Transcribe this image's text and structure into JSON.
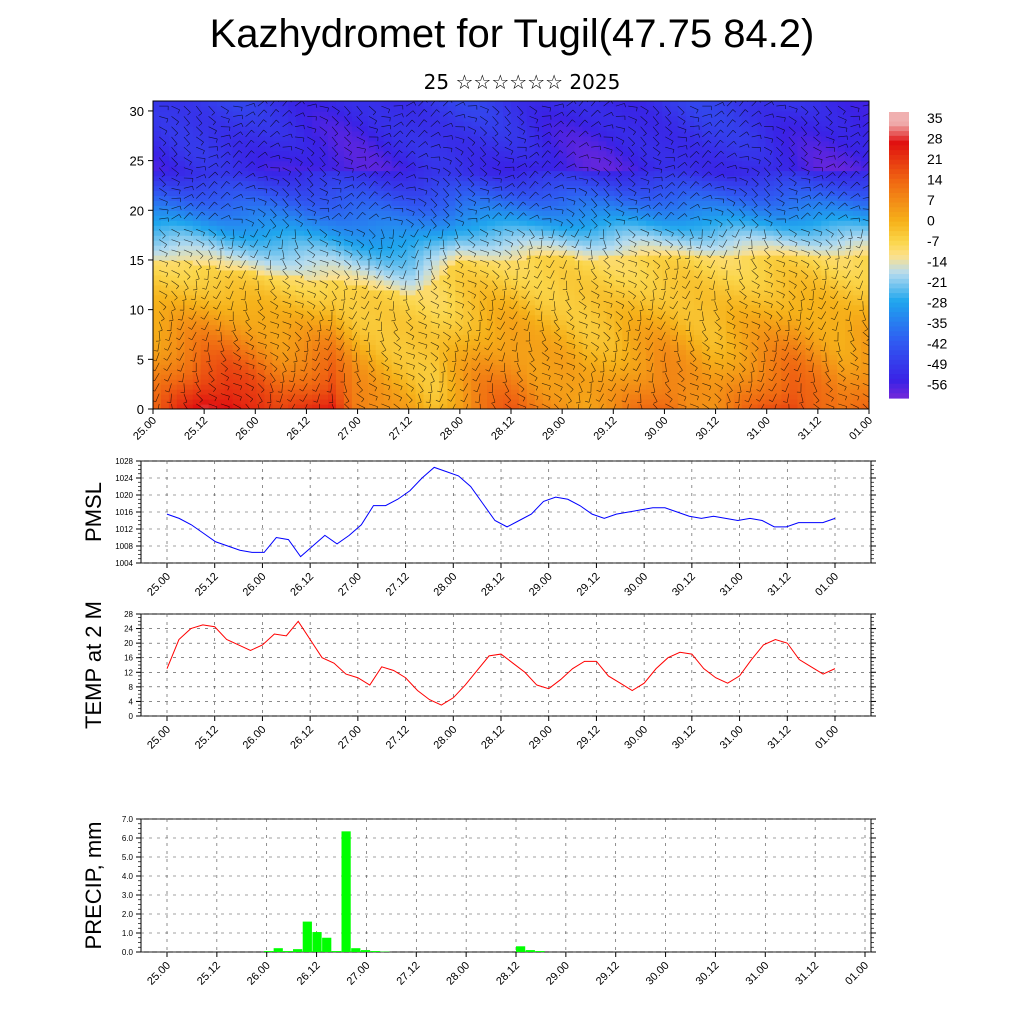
{
  "header": {
    "title": "Kazhydromet for Tugil(47.75 84.2)",
    "subtitle": "25 ☆☆☆☆☆☆ 2025"
  },
  "chart_data": [
    {
      "type": "heatmap",
      "title": "Kazhydromet for Tugil(47.75 84.2)",
      "xlabel": "",
      "ylabel": "",
      "x_ticks": [
        "25.00",
        "25.12",
        "26.00",
        "26.12",
        "27.00",
        "27.12",
        "28.00",
        "28.12",
        "29.00",
        "29.12",
        "30.00",
        "30.12",
        "31.00",
        "31.12",
        "01.00"
      ],
      "y_ticks": [
        0,
        5,
        10,
        15,
        20,
        25,
        30
      ],
      "ylim": [
        0,
        31
      ],
      "colorbar": {
        "labels": [
          "35",
          "28",
          "21",
          "14",
          "7",
          "0",
          "-7",
          "-14",
          "-21",
          "-28",
          "-35",
          "-42",
          "-49",
          "-56"
        ],
        "range": [
          -63,
          38
        ],
        "stops": [
          {
            "value": -63,
            "color": "#7a28d8"
          },
          {
            "value": -56,
            "color": "#3a22e6"
          },
          {
            "value": -42,
            "color": "#2f5cf2"
          },
          {
            "value": -28,
            "color": "#1fa6ee"
          },
          {
            "value": -18,
            "color": "#b7dcef"
          },
          {
            "value": -12,
            "color": "#fde08a"
          },
          {
            "value": -7,
            "color": "#fbd64a"
          },
          {
            "value": 0,
            "color": "#f6b21a"
          },
          {
            "value": 14,
            "color": "#f06a12"
          },
          {
            "value": 28,
            "color": "#e01010"
          },
          {
            "value": 35,
            "color": "#f0b0b0"
          }
        ]
      },
      "surface_temperature": [
        14,
        22,
        30,
        31,
        25,
        18,
        22,
        28,
        12,
        6,
        2,
        -2,
        6,
        14,
        16,
        10,
        8,
        4,
        6,
        12,
        16,
        10,
        6,
        12,
        18,
        22,
        16,
        10,
        14
      ],
      "freezing_level": [
        15,
        15,
        14.5,
        14,
        13.8,
        13.5,
        13.2,
        13,
        12.5,
        12,
        11.5,
        13,
        15,
        15.2,
        15.2,
        15.3,
        15.3,
        15.2,
        15.3,
        15.5,
        15.4,
        15.5,
        15.4,
        15.5,
        15.5,
        15.6,
        15.6,
        15.6,
        15.7
      ],
      "wind_barbs": "black",
      "legend": "right"
    },
    {
      "type": "line",
      "ylabel": "PMSL",
      "ylim": [
        1004,
        1028
      ],
      "y_ticks": [
        1004,
        1008,
        1012,
        1016,
        1020,
        1024,
        1028
      ],
      "x_ticks": [
        "25.00",
        "25.12",
        "26.00",
        "26.12",
        "27.00",
        "27.12",
        "28.00",
        "28.12",
        "29.00",
        "29.12",
        "30.00",
        "30.12",
        "31.00",
        "31.12",
        "01.00"
      ],
      "grid": true,
      "series": [
        {
          "color": "#0000ff",
          "values": [
            1015.5,
            1014.5,
            1013,
            1011,
            1009,
            1008,
            1007,
            1006.5,
            1006.5,
            1010,
            1009.5,
            1005.5,
            1008,
            1010.5,
            1008.5,
            1010.5,
            1013,
            1017.5,
            1017.5,
            1019,
            1021,
            1024,
            1026.5,
            1025.5,
            1024.5,
            1022,
            1018,
            1014,
            1012.5,
            1014,
            1015.5,
            1018.5,
            1019.5,
            1019,
            1017.5,
            1015.5,
            1014.5,
            1015.5,
            1016,
            1016.5,
            1017,
            1017,
            1016,
            1015,
            1014.5,
            1015,
            1014.5,
            1014,
            1014.5,
            1014,
            1012.5,
            1012.5,
            1013.5,
            1013.5,
            1013.5,
            1014.5
          ]
        }
      ]
    },
    {
      "type": "line",
      "ylabel": "TEMP at 2 M",
      "ylim": [
        0,
        28
      ],
      "y_ticks": [
        0,
        4,
        8,
        12,
        16,
        20,
        24,
        28
      ],
      "x_ticks": [
        "25.00",
        "25.12",
        "26.00",
        "26.12",
        "27.00",
        "27.12",
        "28.00",
        "28.12",
        "29.00",
        "29.12",
        "30.00",
        "30.12",
        "31.00",
        "31.12",
        "01.00"
      ],
      "grid": true,
      "series": [
        {
          "color": "#ff0000",
          "values": [
            13,
            21,
            24,
            25,
            24.5,
            21,
            19.5,
            18,
            19.5,
            22.5,
            22,
            26,
            21,
            16,
            14.5,
            11.5,
            10.5,
            8.5,
            13.5,
            12.5,
            10.5,
            7,
            4.5,
            3,
            5,
            8.5,
            12.5,
            16.5,
            17,
            14.5,
            12,
            8.5,
            7.5,
            10,
            13,
            15,
            15,
            11,
            9,
            7,
            9,
            13,
            16,
            17.5,
            17,
            13,
            10.5,
            9,
            11,
            15.5,
            19.5,
            21,
            20,
            15.5,
            13.5,
            11.5,
            13
          ]
        }
      ]
    },
    {
      "type": "bar",
      "ylabel": "PRECIP, mm",
      "ylim": [
        0,
        7
      ],
      "y_ticks": [
        "0.0",
        "1.0",
        "2.0",
        "3.0",
        "4.0",
        "5.0",
        "6.0",
        "7.0"
      ],
      "x_ticks": [
        "25.00",
        "25.12",
        "26.00",
        "26.12",
        "27.00",
        "27.12",
        "28.00",
        "28.12",
        "29.00",
        "29.12",
        "30.00",
        "30.12",
        "31.00",
        "31.12",
        "01.00"
      ],
      "grid": true,
      "series": [
        {
          "color": "#00ff00",
          "values": [
            0,
            0,
            0,
            0,
            0,
            0,
            0,
            0,
            0,
            0,
            0.05,
            0.2,
            0.05,
            0.15,
            1.6,
            1.05,
            0.75,
            0.05,
            6.35,
            0.2,
            0.1,
            0.05,
            0.02,
            0,
            0,
            0,
            0,
            0,
            0,
            0,
            0,
            0,
            0,
            0,
            0,
            0,
            0.3,
            0.1,
            0.05,
            0,
            0,
            0,
            0,
            0,
            0,
            0,
            0,
            0,
            0,
            0,
            0,
            0,
            0,
            0,
            0,
            0,
            0,
            0,
            0,
            0,
            0,
            0,
            0,
            0,
            0,
            0,
            0,
            0,
            0,
            0,
            0,
            0
          ]
        }
      ]
    }
  ]
}
